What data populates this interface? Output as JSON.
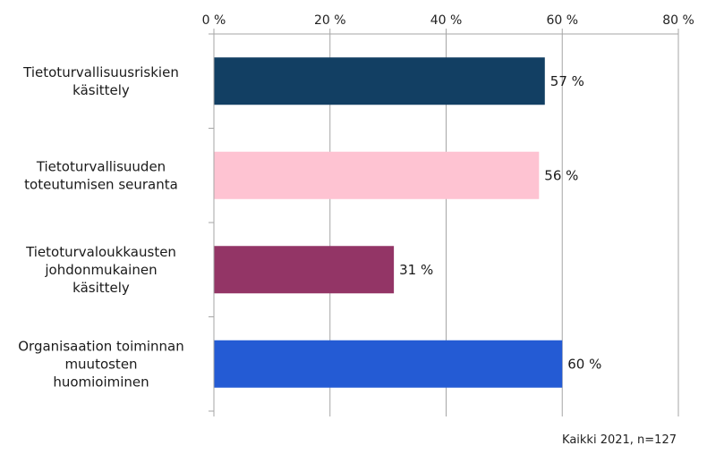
{
  "chart_data": {
    "type": "bar",
    "orientation": "horizontal",
    "categories": [
      [
        "Tietoturvallisuusriskien",
        "käsittely"
      ],
      [
        "Tietoturvallisuuden",
        "toteutumisen seuranta"
      ],
      [
        "Tietoturvaloukkausten",
        "johdonmukainen",
        "käsittely"
      ],
      [
        "Organisaation toiminnan",
        "muutosten",
        "huomioiminen"
      ]
    ],
    "values": [
      57,
      56,
      31,
      60
    ],
    "data_labels": [
      "57 %",
      "56 %",
      "31 %",
      "60 %"
    ],
    "bar_colors": [
      "#123f63",
      "#fec3d2",
      "#933566",
      "#245bd4"
    ],
    "xlim": [
      0,
      80
    ],
    "x_ticks": [
      0,
      20,
      40,
      60,
      80
    ],
    "x_tick_labels": [
      "0 %",
      "20 %",
      "40 %",
      "60 %",
      "80 %"
    ],
    "x_axis_position": "top",
    "grid": true,
    "note": "Kaikki 2021, n=127"
  }
}
